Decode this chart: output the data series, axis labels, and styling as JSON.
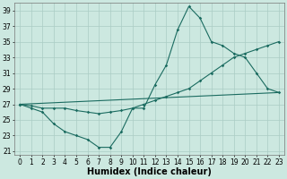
{
  "xlabel": "Humidex (Indice chaleur)",
  "bg_color": "#cce8e0",
  "line_color": "#1a6b60",
  "grid_color": "#aaccc4",
  "xlim": [
    -0.5,
    23.5
  ],
  "ylim": [
    20.5,
    40
  ],
  "yticks": [
    21,
    23,
    25,
    27,
    29,
    31,
    33,
    35,
    37,
    39
  ],
  "xticks": [
    0,
    1,
    2,
    3,
    4,
    5,
    6,
    7,
    8,
    9,
    10,
    11,
    12,
    13,
    14,
    15,
    16,
    17,
    18,
    19,
    20,
    21,
    22,
    23
  ],
  "line1_x": [
    0,
    1,
    2,
    3,
    4,
    5,
    6,
    7,
    8,
    9,
    10,
    11,
    12,
    13,
    14,
    15,
    16,
    17,
    18,
    19,
    20,
    21,
    22,
    23
  ],
  "line1_y": [
    27,
    26.5,
    26,
    24.5,
    23.5,
    23,
    22.5,
    21.5,
    21.5,
    23.5,
    26.5,
    26.5,
    29.5,
    32,
    36.5,
    39.5,
    38,
    35,
    34.5,
    33.5,
    33,
    31,
    29,
    28.5
  ],
  "line2_x": [
    0,
    1,
    2,
    3,
    4,
    5,
    6,
    7,
    8,
    9,
    10,
    11,
    12,
    13,
    14,
    15,
    16,
    17,
    18,
    19,
    20,
    21,
    22,
    23
  ],
  "line2_y": [
    27,
    26.8,
    26.5,
    26.5,
    26.5,
    26.2,
    26.0,
    25.8,
    26.0,
    26.2,
    26.5,
    27.0,
    27.5,
    28.0,
    28.5,
    29.0,
    30.0,
    31.0,
    32.0,
    33.0,
    33.5,
    34.0,
    34.5,
    35.0
  ],
  "line3_x": [
    0,
    23
  ],
  "line3_y": [
    27,
    28.5
  ],
  "xlabel_fontsize": 7,
  "tick_fontsize": 5.5
}
